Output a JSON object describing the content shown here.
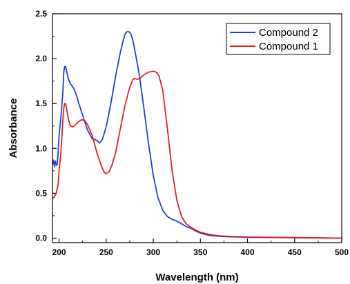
{
  "chart_data": {
    "type": "line",
    "xlabel": "Wavelength (nm)",
    "ylabel": "Absorbance",
    "xlim": [
      193,
      500
    ],
    "ylim": [
      -0.05,
      2.5
    ],
    "x_ticks": [
      200,
      250,
      300,
      350,
      400,
      450,
      500
    ],
    "y_ticks": [
      0.0,
      0.5,
      1.0,
      1.5,
      2.0,
      2.5
    ],
    "x_tick_labels": [
      "200",
      "250",
      "300",
      "350",
      "400",
      "450",
      "500"
    ],
    "y_tick_labels": [
      "0.0",
      "0.5",
      "1.0",
      "1.5",
      "2.0",
      "2.5"
    ],
    "grid": false,
    "legend_position": "top-right",
    "series": [
      {
        "name": "Compound 2",
        "color": "#1f3fd6",
        "points": [
          [
            193,
            0.82
          ],
          [
            194,
            0.87
          ],
          [
            195,
            0.8
          ],
          [
            196,
            0.86
          ],
          [
            197,
            0.81
          ],
          [
            198,
            0.82
          ],
          [
            199,
            0.95
          ],
          [
            200,
            1.15
          ],
          [
            202,
            1.35
          ],
          [
            204,
            1.62
          ],
          [
            205,
            1.85
          ],
          [
            206,
            1.91
          ],
          [
            207,
            1.91
          ],
          [
            208,
            1.86
          ],
          [
            210,
            1.77
          ],
          [
            212,
            1.72
          ],
          [
            215,
            1.68
          ],
          [
            218,
            1.61
          ],
          [
            221,
            1.5
          ],
          [
            225,
            1.37
          ],
          [
            230,
            1.21
          ],
          [
            235,
            1.11
          ],
          [
            240,
            1.09
          ],
          [
            243,
            1.06
          ],
          [
            246,
            1.1
          ],
          [
            250,
            1.24
          ],
          [
            255,
            1.5
          ],
          [
            260,
            1.8
          ],
          [
            265,
            2.07
          ],
          [
            268,
            2.2
          ],
          [
            270,
            2.27
          ],
          [
            272,
            2.3
          ],
          [
            274,
            2.3
          ],
          [
            276,
            2.28
          ],
          [
            278,
            2.22
          ],
          [
            280,
            2.12
          ],
          [
            285,
            1.83
          ],
          [
            290,
            1.45
          ],
          [
            295,
            1.05
          ],
          [
            300,
            0.7
          ],
          [
            305,
            0.45
          ],
          [
            310,
            0.31
          ],
          [
            315,
            0.24
          ],
          [
            320,
            0.21
          ],
          [
            325,
            0.19
          ],
          [
            330,
            0.16
          ],
          [
            335,
            0.13
          ],
          [
            340,
            0.11
          ],
          [
            345,
            0.08
          ],
          [
            350,
            0.055
          ],
          [
            360,
            0.03
          ],
          [
            370,
            0.02
          ],
          [
            380,
            0.015
          ],
          [
            400,
            0.01
          ],
          [
            450,
            0.005
          ],
          [
            500,
            0.0
          ]
        ]
      },
      {
        "name": "Compound 1",
        "color": "#e01f1f",
        "points": [
          [
            193,
            0.44
          ],
          [
            195,
            0.46
          ],
          [
            197,
            0.5
          ],
          [
            199,
            0.6
          ],
          [
            200,
            0.75
          ],
          [
            202,
            0.95
          ],
          [
            204,
            1.3
          ],
          [
            205,
            1.45
          ],
          [
            206,
            1.5
          ],
          [
            207,
            1.5
          ],
          [
            208,
            1.44
          ],
          [
            210,
            1.32
          ],
          [
            212,
            1.25
          ],
          [
            215,
            1.24
          ],
          [
            218,
            1.27
          ],
          [
            221,
            1.3
          ],
          [
            224,
            1.32
          ],
          [
            227,
            1.31
          ],
          [
            230,
            1.27
          ],
          [
            235,
            1.15
          ],
          [
            240,
            0.96
          ],
          [
            245,
            0.8
          ],
          [
            248,
            0.73
          ],
          [
            250,
            0.72
          ],
          [
            253,
            0.74
          ],
          [
            256,
            0.81
          ],
          [
            260,
            0.95
          ],
          [
            265,
            1.22
          ],
          [
            270,
            1.48
          ],
          [
            275,
            1.68
          ],
          [
            278,
            1.76
          ],
          [
            280,
            1.78
          ],
          [
            283,
            1.77
          ],
          [
            286,
            1.78
          ],
          [
            290,
            1.82
          ],
          [
            295,
            1.85
          ],
          [
            300,
            1.86
          ],
          [
            303,
            1.85
          ],
          [
            306,
            1.81
          ],
          [
            310,
            1.65
          ],
          [
            315,
            1.22
          ],
          [
            320,
            0.75
          ],
          [
            325,
            0.42
          ],
          [
            330,
            0.24
          ],
          [
            335,
            0.16
          ],
          [
            340,
            0.12
          ],
          [
            345,
            0.09
          ],
          [
            350,
            0.065
          ],
          [
            360,
            0.04
          ],
          [
            370,
            0.025
          ],
          [
            380,
            0.02
          ],
          [
            400,
            0.012
          ],
          [
            450,
            0.006
          ],
          [
            500,
            0.0
          ]
        ]
      }
    ]
  }
}
